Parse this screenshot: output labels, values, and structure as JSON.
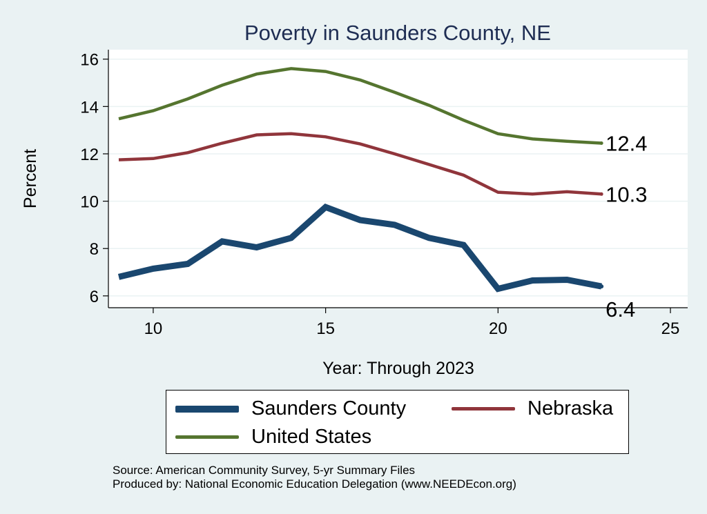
{
  "chart_data": {
    "type": "line",
    "title": "Poverty in Saunders County, NE",
    "xlabel": "Year: Through 2023",
    "ylabel": "Percent",
    "xlim": [
      8.7,
      25.5
    ],
    "ylim": [
      5.5,
      16.4
    ],
    "xticks": [
      10,
      15,
      20,
      25
    ],
    "yticks": [
      6,
      8,
      10,
      12,
      14,
      16
    ],
    "grid": true,
    "series": [
      {
        "name": "Saunders County",
        "color": "#1a476f",
        "x": [
          9,
          10,
          11,
          12,
          13,
          14,
          15,
          16,
          17,
          18,
          19,
          20,
          21,
          22,
          23
        ],
        "values": [
          6.8,
          7.15,
          7.35,
          8.3,
          8.05,
          8.45,
          9.75,
          9.2,
          9.0,
          8.45,
          8.15,
          6.3,
          6.65,
          6.68,
          6.4
        ],
        "end_label": "6.4"
      },
      {
        "name": "Nebraska",
        "color": "#90353b",
        "x": [
          9,
          10,
          11,
          12,
          13,
          14,
          15,
          16,
          17,
          18,
          19,
          20,
          21,
          22,
          23
        ],
        "values": [
          11.75,
          11.8,
          12.05,
          12.45,
          12.8,
          12.85,
          12.72,
          12.42,
          12.0,
          11.55,
          11.1,
          10.38,
          10.3,
          10.4,
          10.3
        ],
        "end_label": "10.3"
      },
      {
        "name": "United States",
        "color": "#55752f",
        "x": [
          9,
          10,
          11,
          12,
          13,
          14,
          15,
          16,
          17,
          18,
          19,
          20,
          21,
          22,
          23
        ],
        "values": [
          13.48,
          13.82,
          14.32,
          14.9,
          15.37,
          15.6,
          15.48,
          15.12,
          14.6,
          14.05,
          13.42,
          12.85,
          12.63,
          12.53,
          12.45
        ],
        "end_label": "12.4"
      }
    ]
  },
  "legend": {
    "items": [
      {
        "label": "Saunders County",
        "color": "#1a476f"
      },
      {
        "label": "Nebraska",
        "color": "#90353b"
      },
      {
        "label": "United States",
        "color": "#55752f"
      }
    ]
  },
  "source": {
    "line1": "Source: American Community Survey, 5-yr Summary Files",
    "line2": "Produced by: National Economic Education Delegation (www.NEEDEcon.org)"
  }
}
